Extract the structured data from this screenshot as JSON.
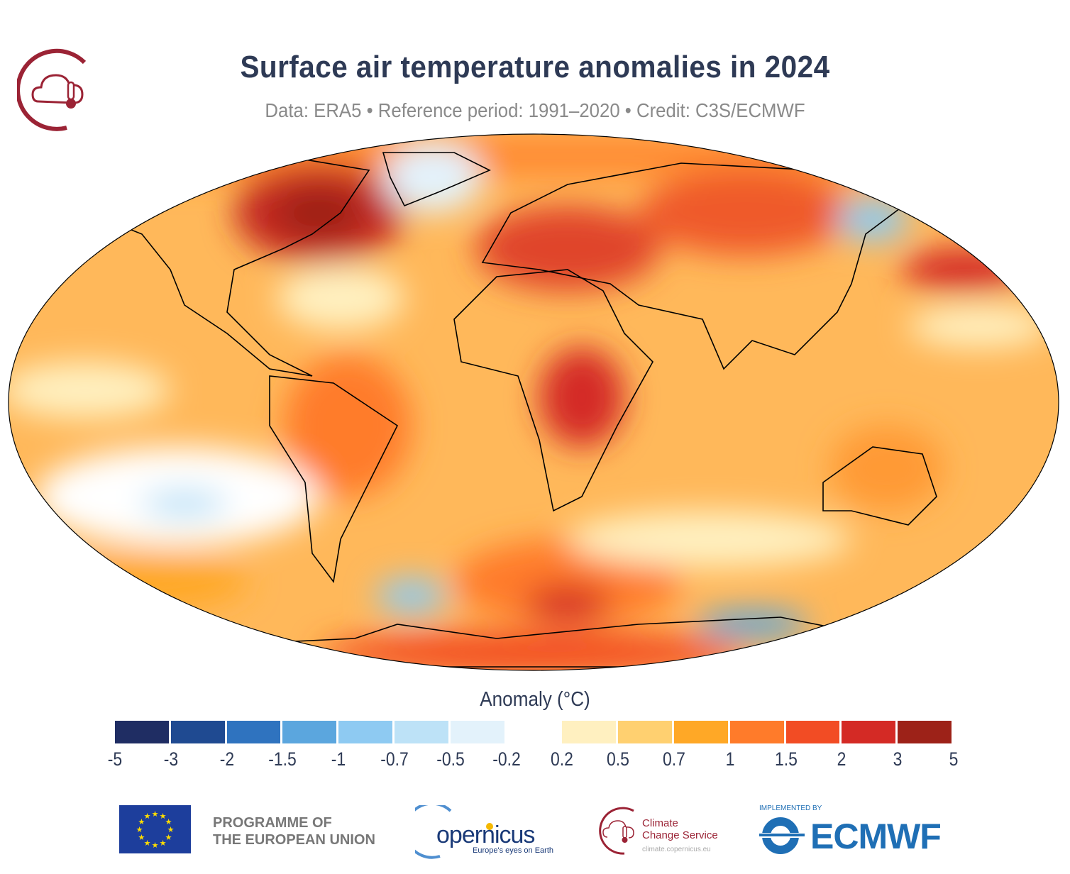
{
  "header": {
    "title": "Surface air temperature anomalies in 2024",
    "subtitle": "Data: ERA5 • Reference period: 1991–2020 • Credit: C3S/ECMWF"
  },
  "map": {
    "projection": "Robinson",
    "variable": "surface air temperature anomaly"
  },
  "legend": {
    "title": "Anomaly (°C)",
    "ticks": [
      "-5",
      "-3",
      "-2",
      "-1.5",
      "-1",
      "-0.7",
      "-0.5",
      "-0.2",
      "0.2",
      "0.5",
      "0.7",
      "1",
      "1.5",
      "2",
      "3",
      "5"
    ],
    "colors": [
      "#1f2d63",
      "#1f4a91",
      "#2f73bf",
      "#5ba6de",
      "#8ecaf2",
      "#bde2f7",
      "#e3f2fb",
      "#ffffff",
      "#fff0c0",
      "#ffd070",
      "#ffa826",
      "#ff7b2a",
      "#f24c24",
      "#d42a25",
      "#9d2218"
    ]
  },
  "footer": {
    "eu_line1": "PROGRAMME OF",
    "eu_line2": "THE EUROPEAN UNION",
    "copernicus": "opernicus",
    "copernicus_tagline": "Europe's eyes on Earth",
    "c3s_line1": "Climate",
    "c3s_line2": "Change Service",
    "c3s_url": "climate.copernicus.eu",
    "implemented_by": "IMPLEMENTED BY",
    "ecmwf": "ECMWF"
  }
}
